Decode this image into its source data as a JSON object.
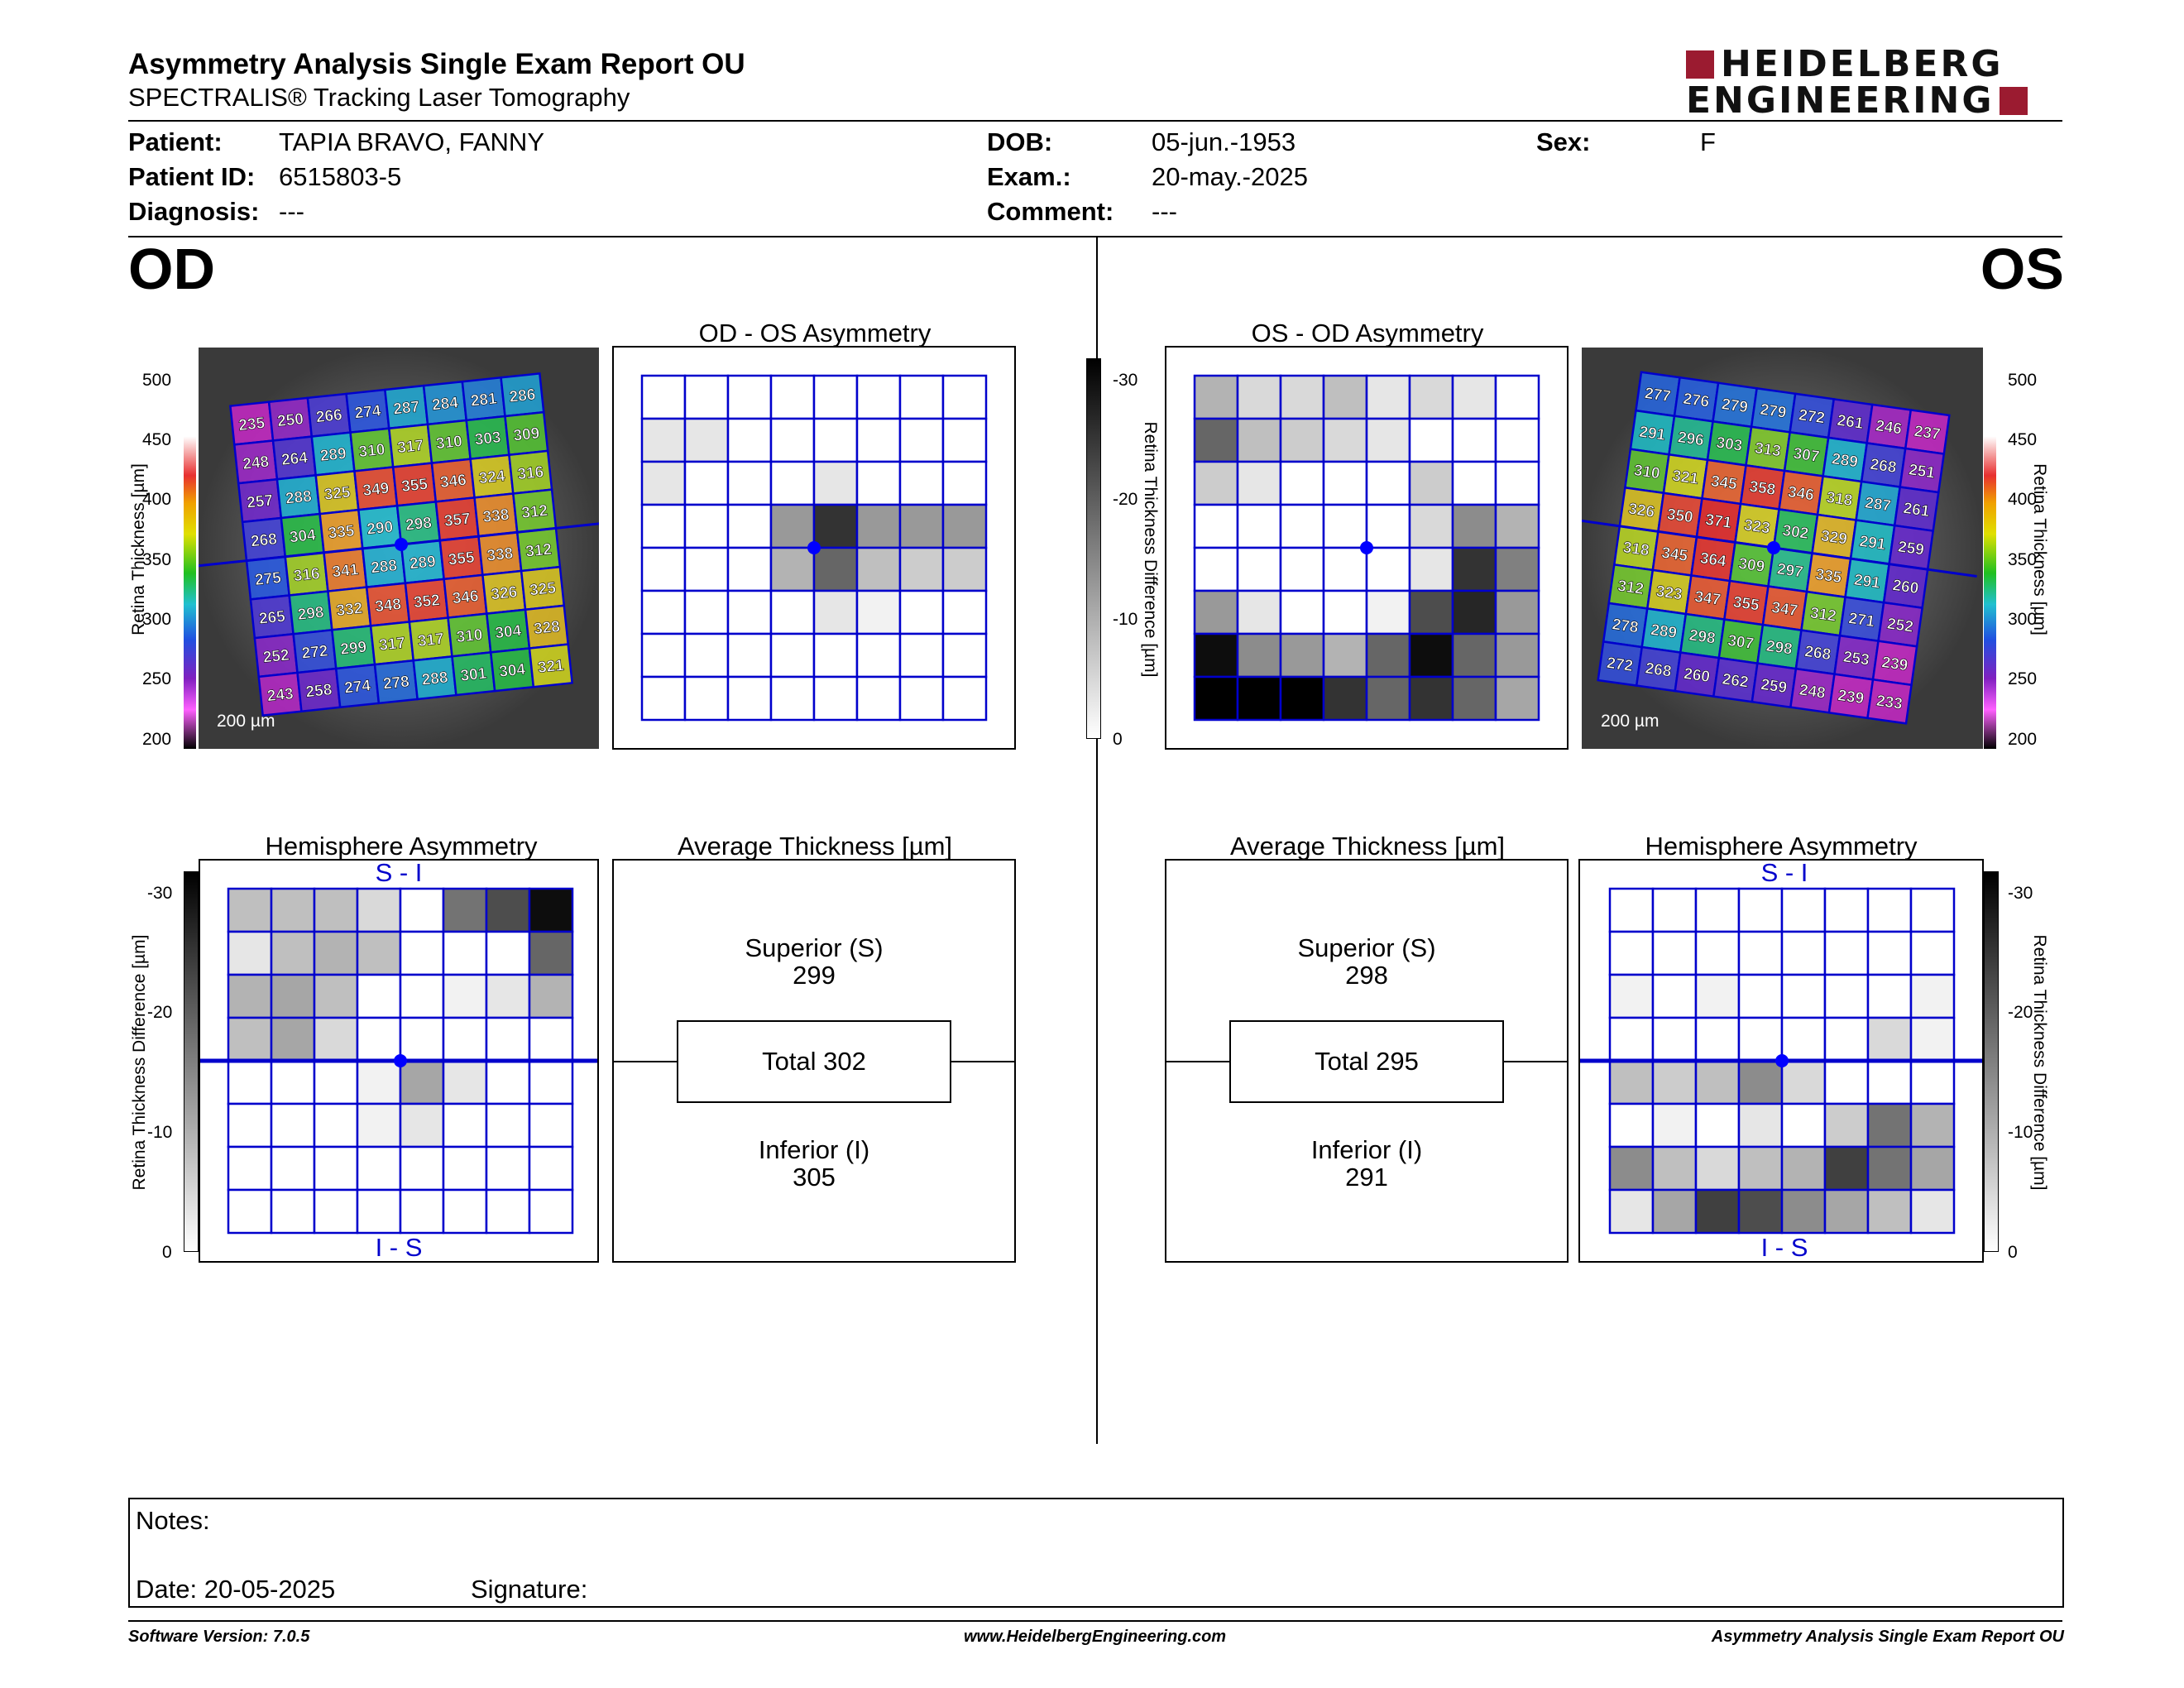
{
  "header": {
    "title": "Asymmetry Analysis Single Exam Report OU",
    "subtitle": "SPECTRALIS® Tracking Laser Tomography",
    "logo_line1": "HEIDELBERG",
    "logo_line2": "ENGINEERING"
  },
  "patient": {
    "patient_label": "Patient:",
    "patient": "TAPIA BRAVO, FANNY",
    "id_label": "Patient ID:",
    "id": "6515803-5",
    "diagnosis_label": "Diagnosis:",
    "diagnosis": "---",
    "dob_label": "DOB:",
    "dob": "05-jun.-1953",
    "exam_label": "Exam.:",
    "exam": "20-may.-2025",
    "comment_label": "Comment:",
    "comment": "---",
    "sex_label": "Sex:",
    "sex": "F"
  },
  "eyes": {
    "od": "OD",
    "os": "OS"
  },
  "scales": {
    "thickness_label": "Retina Thickness [µm]",
    "thickness_ticks": [
      "500",
      "450",
      "400",
      "350",
      "300",
      "250",
      "200"
    ],
    "diff_label": "Retina Thickness Difference [µm]",
    "diff_ticks": [
      "-30",
      "-20",
      "-10",
      "0"
    ],
    "scale_bar": "200 µm"
  },
  "od": {
    "asym_title": "OD - OS Asymmetry",
    "hemi_title": "Hemisphere Asymmetry",
    "avg_title": "Average Thickness [µm]",
    "superior_label": "Superior (S)",
    "superior": "299",
    "total_label": "Total 302",
    "inferior_label": "Inferior (I)",
    "inferior": "305",
    "hemi_top": "S - I",
    "hemi_bottom": "I - S",
    "thickness_grid": [
      [
        235,
        250,
        266,
        274,
        287,
        284,
        281,
        286
      ],
      [
        248,
        264,
        289,
        310,
        317,
        310,
        303,
        309
      ],
      [
        257,
        288,
        325,
        349,
        355,
        346,
        324,
        316
      ],
      [
        268,
        304,
        335,
        290,
        298,
        357,
        338,
        312
      ],
      [
        275,
        316,
        341,
        288,
        289,
        355,
        338,
        312
      ],
      [
        265,
        298,
        332,
        348,
        352,
        346,
        326,
        325
      ],
      [
        252,
        272,
        299,
        317,
        317,
        310,
        304,
        328
      ],
      [
        243,
        258,
        274,
        278,
        288,
        301,
        304,
        321
      ]
    ],
    "asym_grid": [
      [
        0,
        0,
        0,
        0,
        0,
        0,
        0,
        0
      ],
      [
        0.1,
        0.1,
        0,
        0,
        0,
        0,
        0,
        0
      ],
      [
        0.1,
        0,
        0,
        0,
        0.1,
        0,
        0,
        0
      ],
      [
        0,
        0,
        0,
        0.4,
        0.8,
        0.4,
        0.4,
        0.4
      ],
      [
        0,
        0,
        0,
        0.3,
        0.6,
        0.25,
        0.2,
        0.2
      ],
      [
        0,
        0,
        0,
        0,
        0.1,
        0.05,
        0,
        0
      ],
      [
        0,
        0,
        0,
        0,
        0,
        0,
        0,
        0
      ],
      [
        0,
        0,
        0,
        0,
        0,
        0,
        0,
        0
      ]
    ],
    "hemi_grid": [
      [
        0.25,
        0.25,
        0.25,
        0.15,
        0,
        0.55,
        0.7,
        0.95
      ],
      [
        0.1,
        0.25,
        0.3,
        0.25,
        0,
        0,
        0,
        0.6
      ],
      [
        0.3,
        0.35,
        0.25,
        0,
        0,
        0.05,
        0.1,
        0.3
      ],
      [
        0.25,
        0.35,
        0.15,
        0,
        0,
        0,
        0,
        0
      ],
      [
        0,
        0,
        0,
        0.05,
        0.35,
        0.1,
        0,
        0
      ],
      [
        0,
        0,
        0,
        0.05,
        0.1,
        0,
        0,
        0
      ],
      [
        0,
        0,
        0,
        0,
        0,
        0,
        0,
        0
      ],
      [
        0,
        0,
        0,
        0,
        0,
        0,
        0,
        0
      ]
    ]
  },
  "os": {
    "asym_title": "OS - OD Asymmetry",
    "hemi_title": "Hemisphere Asymmetry",
    "avg_title": "Average Thickness [µm]",
    "superior_label": "Superior (S)",
    "superior": "298",
    "total_label": "Total 295",
    "inferior_label": "Inferior (I)",
    "inferior": "291",
    "hemi_top": "S - I",
    "hemi_bottom": "I - S",
    "thickness_grid": [
      [
        277,
        276,
        279,
        279,
        272,
        261,
        246,
        237
      ],
      [
        291,
        296,
        303,
        313,
        307,
        289,
        268,
        251
      ],
      [
        310,
        321,
        345,
        358,
        346,
        318,
        287,
        261
      ],
      [
        326,
        350,
        371,
        323,
        302,
        329,
        291,
        259
      ],
      [
        318,
        345,
        364,
        309,
        297,
        335,
        291,
        260
      ],
      [
        312,
        323,
        347,
        355,
        347,
        312,
        271,
        252
      ],
      [
        278,
        289,
        298,
        307,
        298,
        268,
        253,
        239
      ],
      [
        272,
        268,
        260,
        262,
        259,
        248,
        239,
        233
      ]
    ],
    "asym_grid": [
      [
        0.3,
        0.15,
        0.15,
        0.25,
        0.1,
        0.15,
        0.1,
        0
      ],
      [
        0.6,
        0.25,
        0.2,
        0.15,
        0.1,
        0,
        0,
        0
      ],
      [
        0.2,
        0.1,
        0,
        0,
        0,
        0.2,
        0,
        0
      ],
      [
        0,
        0,
        0,
        0,
        0,
        0.15,
        0.45,
        0.3
      ],
      [
        0,
        0,
        0,
        0,
        0,
        0.1,
        0.8,
        0.5
      ],
      [
        0.4,
        0.1,
        0,
        0,
        0.05,
        0.7,
        0.85,
        0.4
      ],
      [
        0.95,
        0.45,
        0.4,
        0.3,
        0.6,
        0.95,
        0.6,
        0.4
      ],
      [
        1,
        1,
        1,
        0.8,
        0.6,
        0.8,
        0.6,
        0.35
      ]
    ],
    "hemi_grid": [
      [
        0,
        0,
        0,
        0,
        0,
        0,
        0,
        0
      ],
      [
        0,
        0,
        0,
        0,
        0,
        0,
        0,
        0
      ],
      [
        0.05,
        0,
        0.05,
        0,
        0,
        0,
        0,
        0.05
      ],
      [
        0,
        0,
        0,
        0,
        0,
        0,
        0.15,
        0.05
      ],
      [
        0.25,
        0.2,
        0.25,
        0.45,
        0.15,
        0,
        0,
        0
      ],
      [
        0,
        0.05,
        0,
        0.1,
        0,
        0.2,
        0.55,
        0.3
      ],
      [
        0.45,
        0.25,
        0.15,
        0.25,
        0.3,
        0.75,
        0.55,
        0.35
      ],
      [
        0.1,
        0.35,
        0.75,
        0.7,
        0.45,
        0.35,
        0.25,
        0.1
      ]
    ]
  },
  "notes": {
    "notes_label": "Notes:",
    "date_label": "Date: 20-05-2025",
    "signature_label": "Signature:"
  },
  "footer": {
    "software": "Software Version: 7.0.5",
    "website": "www.HeidelbergEngineering.com",
    "report": "Asymmetry Analysis Single Exam Report OU"
  }
}
